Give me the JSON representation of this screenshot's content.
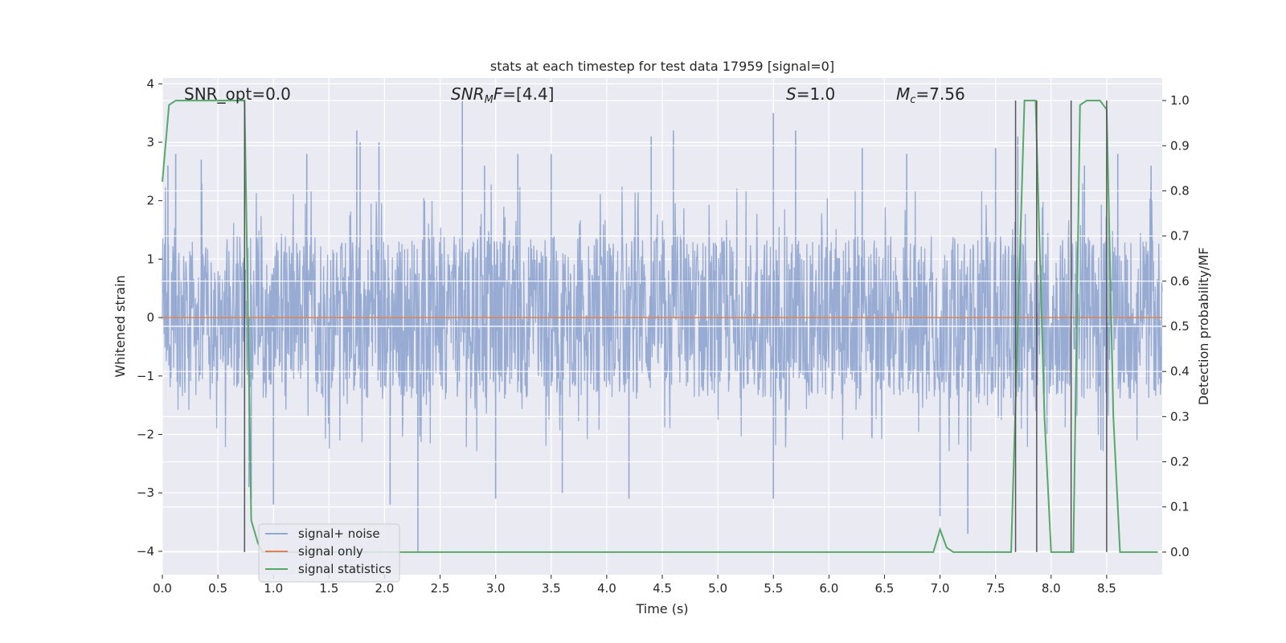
{
  "chart_data": {
    "type": "line",
    "title": "stats at each timestep for test data 17959 [signal=0]",
    "xlabel": "Time (s)",
    "ylabel": "Whitened strain",
    "y2label": "Detection probability/MF",
    "xlim": [
      0.0,
      9.0
    ],
    "ylim": [
      -4.4,
      4.1
    ],
    "y2lim": [
      -0.05,
      1.05
    ],
    "x_ticks": [
      "0.0",
      "0.5",
      "1.0",
      "1.5",
      "2.0",
      "2.5",
      "3.0",
      "3.5",
      "4.0",
      "4.5",
      "5.0",
      "5.5",
      "6.0",
      "6.5",
      "7.0",
      "7.5",
      "8.0",
      "8.5"
    ],
    "y_ticks": [
      "4",
      "3",
      "2",
      "1",
      "0",
      "−1",
      "−2",
      "−3",
      "−4"
    ],
    "y2_ticks": [
      "1.0",
      "0.9",
      "0.8",
      "0.7",
      "0.6",
      "0.5",
      "0.4",
      "0.3",
      "0.2",
      "0.1",
      "0.0"
    ],
    "grid": true,
    "legend_placement": "lower-left",
    "annotations": [
      {
        "key": "snr_opt",
        "text": "SNR_opt=0.0"
      },
      {
        "key": "snr_mf",
        "text": "SNR_MF=[4.4]"
      },
      {
        "key": "s",
        "text": "S=1.0"
      },
      {
        "key": "mc",
        "text": "M_c=7.56"
      }
    ],
    "series": [
      {
        "name": "signal+ noise",
        "color": "#92a8d1",
        "axis": "left",
        "style": "noise",
        "amplitude_core": 1.4,
        "peaks": [
          [
            0.05,
            2.6
          ],
          [
            0.12,
            2.8
          ],
          [
            0.35,
            2.7
          ],
          [
            0.78,
            -2.9
          ],
          [
            0.8,
            -3.1
          ],
          [
            1.0,
            -3.2
          ],
          [
            1.3,
            2.8
          ],
          [
            1.75,
            3.2
          ],
          [
            1.78,
            3.0
          ],
          [
            1.95,
            3.0
          ],
          [
            2.05,
            -3.2
          ],
          [
            2.3,
            -4.0
          ],
          [
            2.7,
            3.7
          ],
          [
            2.9,
            2.6
          ],
          [
            3.0,
            -3.1
          ],
          [
            3.2,
            2.8
          ],
          [
            3.5,
            2.8
          ],
          [
            3.6,
            -3.0
          ],
          [
            4.2,
            -3.1
          ],
          [
            4.4,
            3.1
          ],
          [
            4.6,
            3.2
          ],
          [
            5.5,
            3.5
          ],
          [
            5.5,
            -3.1
          ],
          [
            5.7,
            3.2
          ],
          [
            6.3,
            2.9
          ],
          [
            6.7,
            2.8
          ],
          [
            7.0,
            -3.4
          ],
          [
            7.25,
            -3.7
          ],
          [
            7.5,
            2.9
          ],
          [
            7.7,
            3.1
          ],
          [
            8.3,
            2.6
          ],
          [
            8.6,
            2.8
          ],
          [
            8.9,
            2.6
          ]
        ]
      },
      {
        "name": "signal only",
        "color": "#dd8452",
        "axis": "left",
        "x": [
          0.0,
          9.0
        ],
        "y": [
          0.0,
          0.0
        ]
      },
      {
        "name": "signal statistics",
        "color": "#55a868",
        "axis": "right",
        "x": [
          0.0,
          0.06,
          0.12,
          0.7,
          0.74,
          0.8,
          0.86,
          0.9,
          6.94,
          7.0,
          7.06,
          7.12,
          7.64,
          7.7,
          7.76,
          7.86,
          7.94,
          8.0,
          8.2,
          8.26,
          8.32,
          8.44,
          8.5,
          8.56,
          8.62,
          8.96
        ],
        "y": [
          0.82,
          0.99,
          1.0,
          1.0,
          1.0,
          0.07,
          0.02,
          0.0,
          0.0,
          0.05,
          0.01,
          0.0,
          0.0,
          0.5,
          1.0,
          1.0,
          0.3,
          0.0,
          0.0,
          0.99,
          1.0,
          1.0,
          0.98,
          0.3,
          0.0,
          0.0
        ]
      }
    ],
    "vlines": {
      "color": "#555555",
      "x": [
        0.74,
        7.68,
        7.87,
        8.18,
        8.5
      ],
      "y2_range": [
        0.0,
        1.0
      ]
    },
    "hgrid_y": [
      -4,
      -3,
      -2,
      -1,
      0,
      1,
      2,
      3,
      4
    ],
    "hgrid_y2": [
      0.0,
      0.1,
      0.2,
      0.3,
      0.4,
      0.5,
      0.6,
      0.7,
      0.8,
      0.9,
      1.0
    ]
  }
}
